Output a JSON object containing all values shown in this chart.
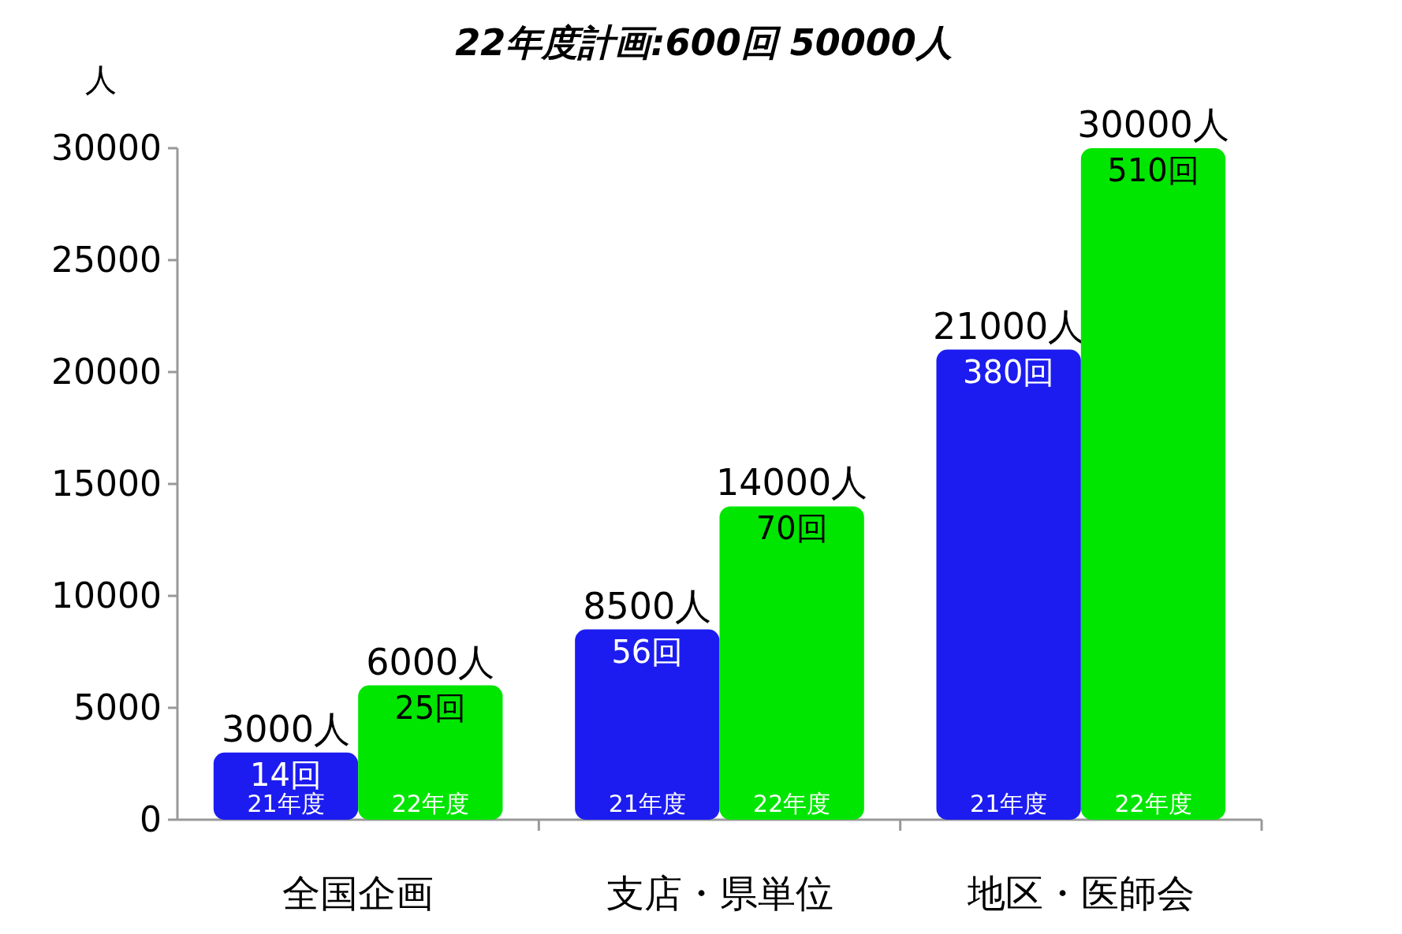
{
  "chart_data": {
    "type": "bar",
    "title": "22年度計画:600回 50000人",
    "ylabel": "人",
    "categories": [
      "全国企画",
      "支店・県単位",
      "地区・医師会"
    ],
    "series": [
      {
        "name": "21年度",
        "color": "#1c1cf0",
        "values": [
          3000,
          8500,
          21000
        ],
        "value_labels": [
          "3000人",
          "8500人",
          "21000人"
        ]
      },
      {
        "name": "22年度",
        "color": "#00e600",
        "values": [
          6000,
          14000,
          30000
        ],
        "value_labels": [
          "6000人",
          "14000人",
          "30000人"
        ]
      }
    ],
    "annotations": [
      "14回",
      "56回",
      "380回",
      "25回",
      "70回",
      "510回"
    ],
    "ylim": [
      0,
      30000
    ],
    "yticks": [
      0,
      5000,
      10000,
      15000,
      20000,
      25000,
      30000
    ],
    "grid": false
  }
}
